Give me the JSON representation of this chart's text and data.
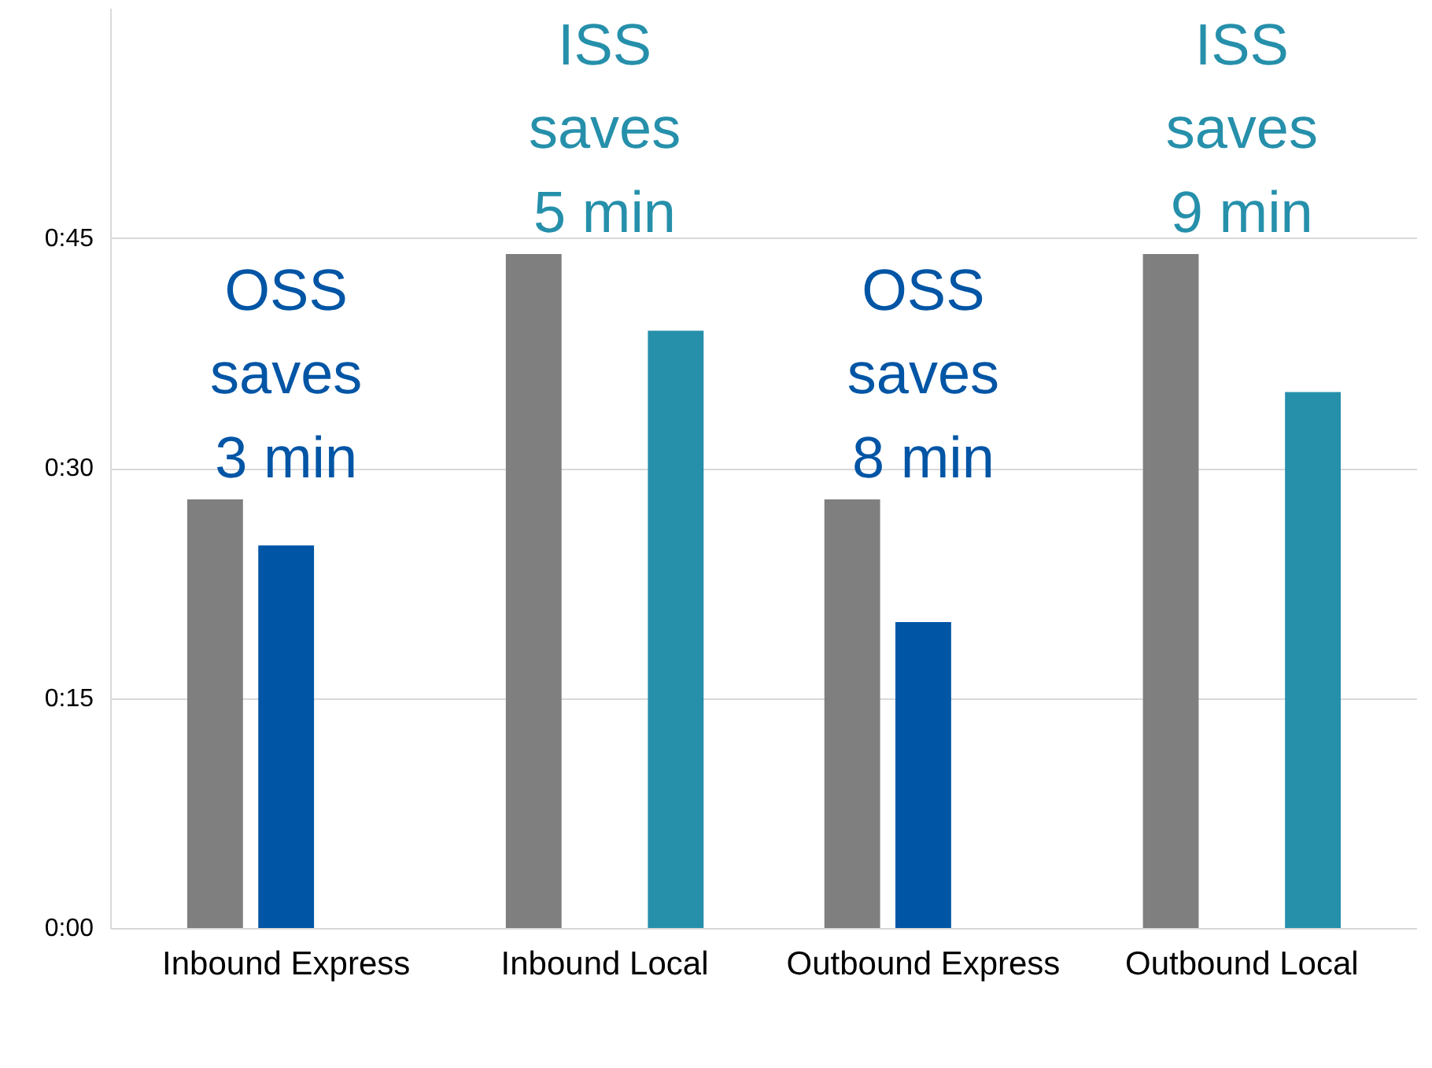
{
  "chart_data": {
    "type": "bar",
    "categories": [
      "Inbound Express",
      "Inbound Local",
      "Outbound Express",
      "Outbound Local"
    ],
    "series": [
      {
        "color": "#7f7f7f",
        "values": [
          28,
          44,
          28,
          44
        ]
      },
      {
        "color": "#0055a5",
        "values": [
          25,
          null,
          20,
          null
        ]
      },
      {
        "color": "#2690ab",
        "values": [
          null,
          39,
          null,
          35
        ]
      }
    ],
    "ylim": [
      0,
      60
    ],
    "yticks": [
      {
        "value": 0,
        "label": "0:00"
      },
      {
        "value": 15,
        "label": "0:15"
      },
      {
        "value": 30,
        "label": "0:30"
      },
      {
        "value": 45,
        "label": "0:45"
      }
    ],
    "grid": "y",
    "annotations": [
      "OSS\nsaves\n3 min",
      "ISS\nsaves\n5 min",
      "OSS\nsaves\n8 min",
      "ISS\nsaves\n9 min"
    ]
  }
}
